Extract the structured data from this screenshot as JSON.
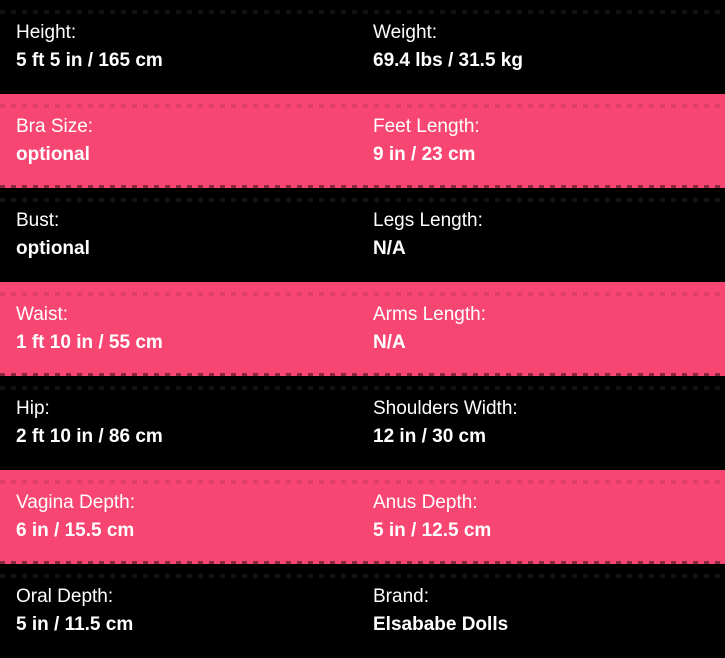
{
  "colors": {
    "row_dark": "#000000",
    "row_pink": "#f84672",
    "text": "#ffffff"
  },
  "specs": {
    "rows": [
      {
        "theme": "dark",
        "cells": [
          {
            "label": "Height:",
            "value": "5 ft 5 in / 165 cm"
          },
          {
            "label": "Weight:",
            "value": "69.4 lbs / 31.5 kg"
          }
        ]
      },
      {
        "theme": "pink",
        "cells": [
          {
            "label": "Bra Size:",
            "value": "optional"
          },
          {
            "label": "Feet Length:",
            "value": "9 in / 23 cm"
          }
        ]
      },
      {
        "theme": "dark",
        "cells": [
          {
            "label": "Bust:",
            "value": "optional"
          },
          {
            "label": "Legs Length:",
            "value": "N/A"
          }
        ]
      },
      {
        "theme": "pink",
        "cells": [
          {
            "label": "Waist:",
            "value": "1 ft 10 in / 55 cm"
          },
          {
            "label": "Arms Length:",
            "value": "N/A"
          }
        ]
      },
      {
        "theme": "dark",
        "cells": [
          {
            "label": "Hip:",
            "value": "2 ft 10 in / 86 cm"
          },
          {
            "label": "Shoulders Width:",
            "value": "12 in / 30 cm"
          }
        ]
      },
      {
        "theme": "pink",
        "cells": [
          {
            "label": "Vagina Depth:",
            "value": "6 in / 15.5 cm"
          },
          {
            "label": "Anus Depth:",
            "value": "5 in / 12.5 cm"
          }
        ]
      },
      {
        "theme": "dark",
        "cells": [
          {
            "label": "Oral Depth:",
            "value": "5 in / 11.5 cm"
          },
          {
            "label": "Brand:",
            "value": "Elsababe Dolls"
          }
        ]
      }
    ]
  }
}
